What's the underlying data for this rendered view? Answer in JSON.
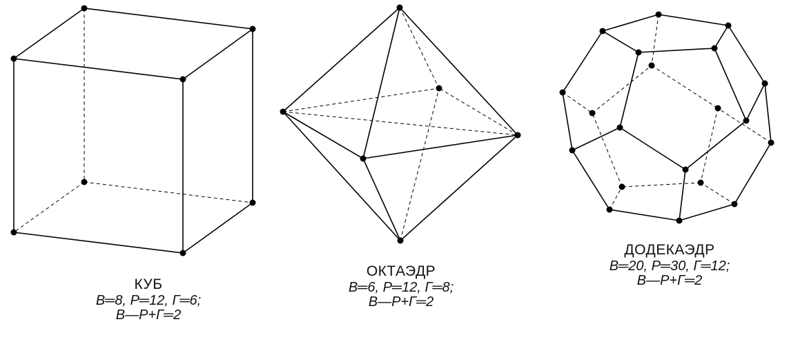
{
  "cube": {
    "name": "КУБ",
    "counts": "В═8,  Р═12,  Г═6;",
    "euler": "В—Р+Г═2"
  },
  "octahedron": {
    "name": "ОКТАЭДР",
    "counts": "В═6,  Р═12,  Г═8;",
    "euler": "В—Р+Г═2"
  },
  "dodecahedron": {
    "name": "ДОДЕКАЭДР",
    "counts": "В═20,  Р═30,  Г═12;",
    "euler": "В—Р+Г═2"
  }
}
